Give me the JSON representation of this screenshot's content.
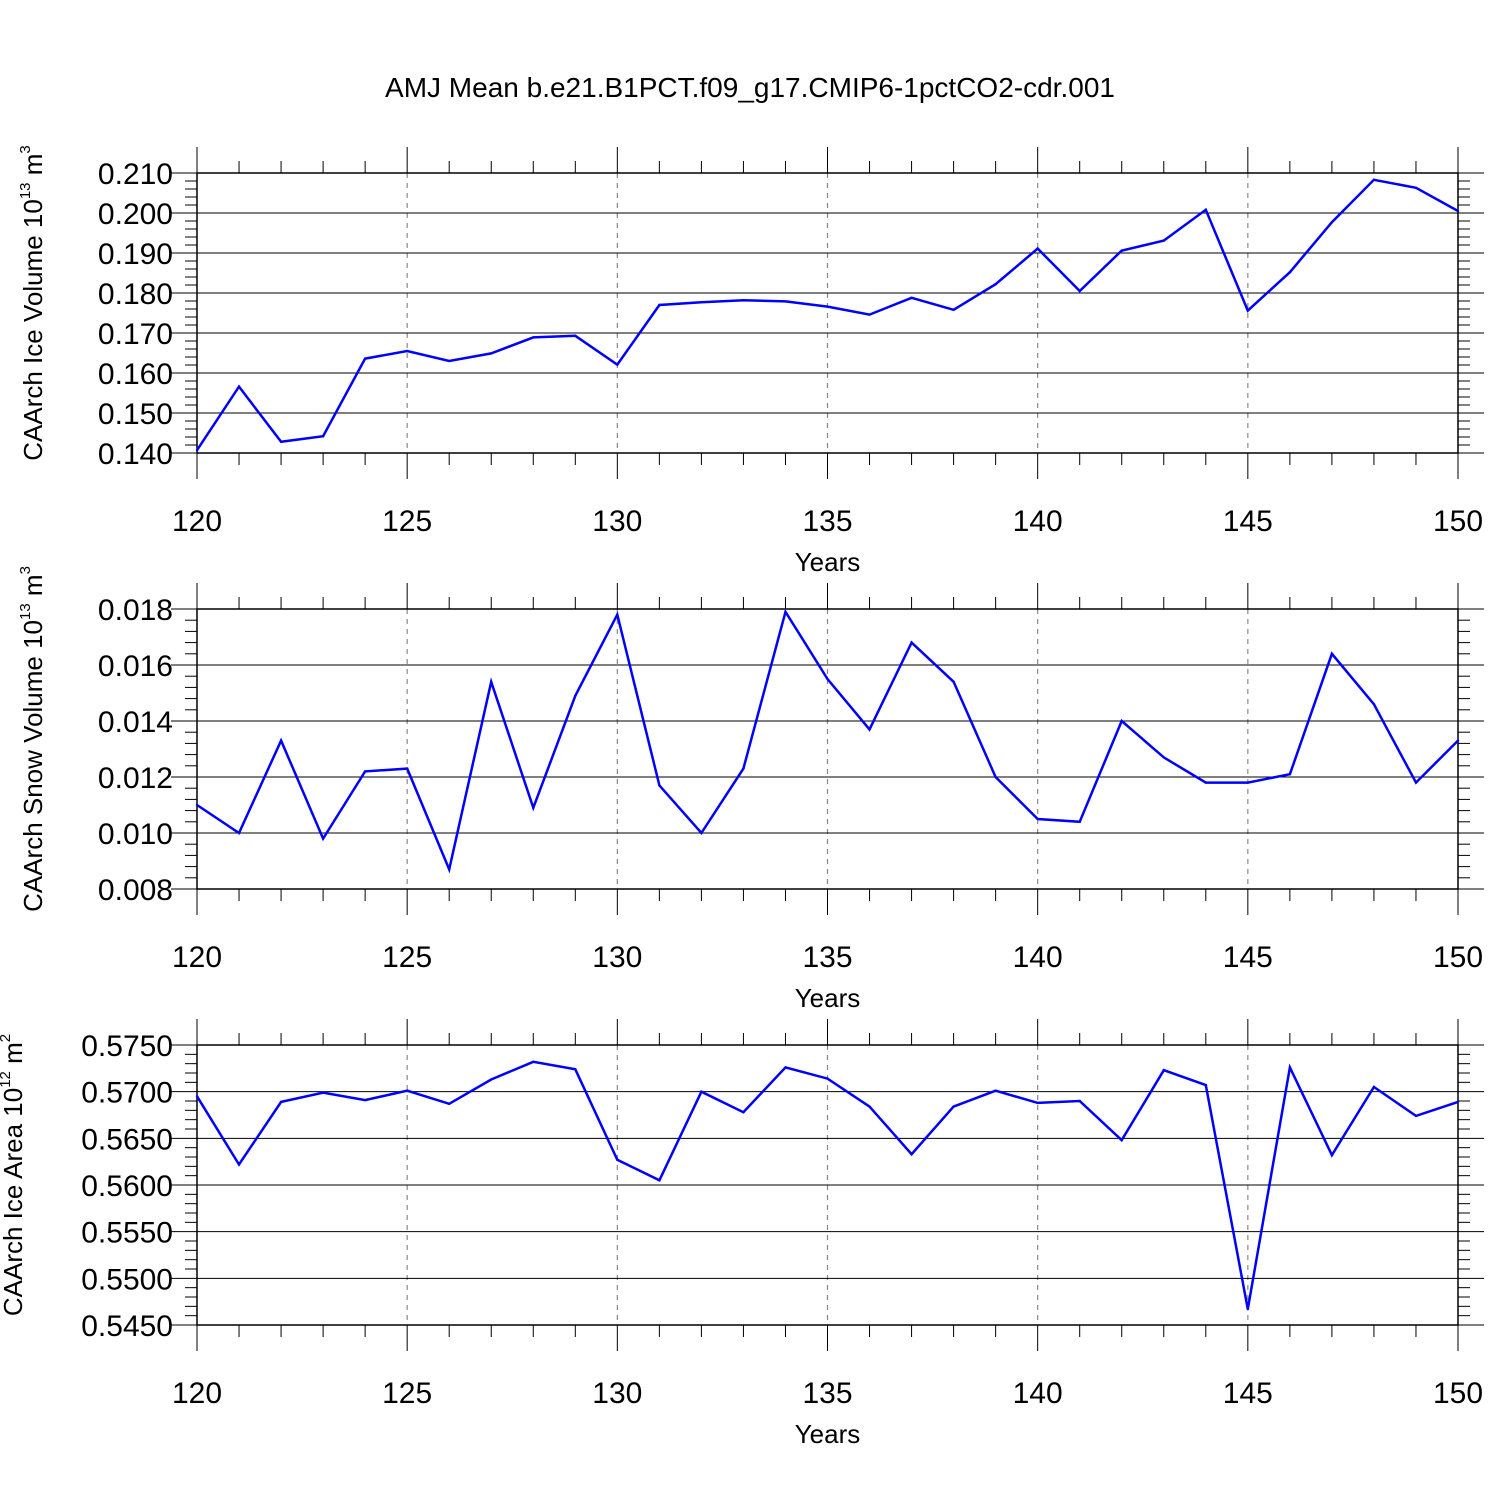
{
  "title": "AMJ Mean b.e21.B1PCT.f09_g17.CMIP6-1pctCO2-cdr.001",
  "line_color": "#0000ff",
  "grid_color": "#888888",
  "chart_data": [
    {
      "type": "line",
      "xlabel": "Years",
      "ylabel": {
        "text": "CAArch Ice Volume 10",
        "sup": "13",
        "unit": " m",
        "unit_sup": "3"
      },
      "xlim": [
        120,
        150
      ],
      "ylim": [
        0.14,
        0.21
      ],
      "xticks": [
        120,
        125,
        130,
        135,
        140,
        145,
        150
      ],
      "xtick_labels": [
        "120",
        "125",
        "130",
        "135",
        "140",
        "145",
        "150"
      ],
      "yticks": [
        0.14,
        0.15,
        0.16,
        0.17,
        0.18,
        0.19,
        0.2,
        0.21
      ],
      "ytick_labels": [
        "0.140",
        "0.150",
        "0.160",
        "0.170",
        "0.180",
        "0.190",
        "0.200",
        "0.210"
      ],
      "grid": "x-dashed",
      "x": [
        120,
        121,
        122,
        123,
        124,
        125,
        126,
        127,
        128,
        129,
        130,
        131,
        132,
        133,
        134,
        135,
        136,
        137,
        138,
        139,
        140,
        141,
        142,
        143,
        144,
        145,
        146,
        147,
        148,
        149,
        150
      ],
      "y": [
        0.1407,
        0.1566,
        0.1428,
        0.1442,
        0.1636,
        0.1655,
        0.163,
        0.1649,
        0.1689,
        0.1693,
        0.1621,
        0.177,
        0.1777,
        0.1782,
        0.1779,
        0.1766,
        0.1746,
        0.1788,
        0.1758,
        0.1822,
        0.1911,
        0.1805,
        0.1906,
        0.1931,
        0.2008,
        0.1756,
        0.1852,
        0.1977,
        0.2083,
        0.2063,
        0.2005
      ]
    },
    {
      "type": "line",
      "xlabel": "Years",
      "ylabel": {
        "text": "CAArch Snow Volume 10",
        "sup": "13",
        "unit": " m",
        "unit_sup": "3"
      },
      "xlim": [
        120,
        150
      ],
      "ylim": [
        0.008,
        0.018
      ],
      "xticks": [
        120,
        125,
        130,
        135,
        140,
        145,
        150
      ],
      "xtick_labels": [
        "120",
        "125",
        "130",
        "135",
        "140",
        "145",
        "150"
      ],
      "yticks": [
        0.008,
        0.01,
        0.012,
        0.014,
        0.016,
        0.018
      ],
      "ytick_labels": [
        "0.008",
        "0.010",
        "0.012",
        "0.014",
        "0.016",
        "0.018"
      ],
      "grid": "x-dashed",
      "x": [
        120,
        121,
        122,
        123,
        124,
        125,
        126,
        127,
        128,
        129,
        130,
        131,
        132,
        133,
        134,
        135,
        136,
        137,
        138,
        139,
        140,
        141,
        142,
        143,
        144,
        145,
        146,
        147,
        148,
        149,
        150
      ],
      "y": [
        0.011,
        0.01,
        0.0133,
        0.0098,
        0.0122,
        0.0123,
        0.0087,
        0.0154,
        0.0109,
        0.0149,
        0.0178,
        0.0117,
        0.01,
        0.0123,
        0.0179,
        0.0155,
        0.0137,
        0.0168,
        0.0154,
        0.012,
        0.0105,
        0.0104,
        0.014,
        0.0127,
        0.0118,
        0.0118,
        0.0121,
        0.0164,
        0.0146,
        0.0118,
        0.0133
      ]
    },
    {
      "type": "line",
      "xlabel": "Years",
      "ylabel": {
        "text": "CAArch Ice Area 10",
        "sup": "12",
        "unit": " m",
        "unit_sup": "2"
      },
      "xlim": [
        120,
        150
      ],
      "ylim": [
        0.545,
        0.575
      ],
      "xticks": [
        120,
        125,
        130,
        135,
        140,
        145,
        150
      ],
      "xtick_labels": [
        "120",
        "125",
        "130",
        "135",
        "140",
        "145",
        "150"
      ],
      "yticks": [
        0.545,
        0.55,
        0.555,
        0.56,
        0.565,
        0.57,
        0.575
      ],
      "ytick_labels": [
        "0.5450",
        "0.5500",
        "0.5550",
        "0.5600",
        "0.5650",
        "0.5700",
        "0.5750"
      ],
      "grid": "x-dashed",
      "x": [
        120,
        121,
        122,
        123,
        124,
        125,
        126,
        127,
        128,
        129,
        130,
        131,
        132,
        133,
        134,
        135,
        136,
        137,
        138,
        139,
        140,
        141,
        142,
        143,
        144,
        145,
        146,
        147,
        148,
        149,
        150
      ],
      "y": [
        0.5695,
        0.5622,
        0.5689,
        0.5699,
        0.5691,
        0.5701,
        0.5687,
        0.5713,
        0.5732,
        0.5724,
        0.5627,
        0.5605,
        0.57,
        0.5678,
        0.5726,
        0.5714,
        0.5684,
        0.5633,
        0.5684,
        0.5701,
        0.5688,
        0.569,
        0.5648,
        0.5723,
        0.5707,
        0.5467,
        0.5726,
        0.5632,
        0.5705,
        0.5674,
        0.5689
      ]
    }
  ]
}
